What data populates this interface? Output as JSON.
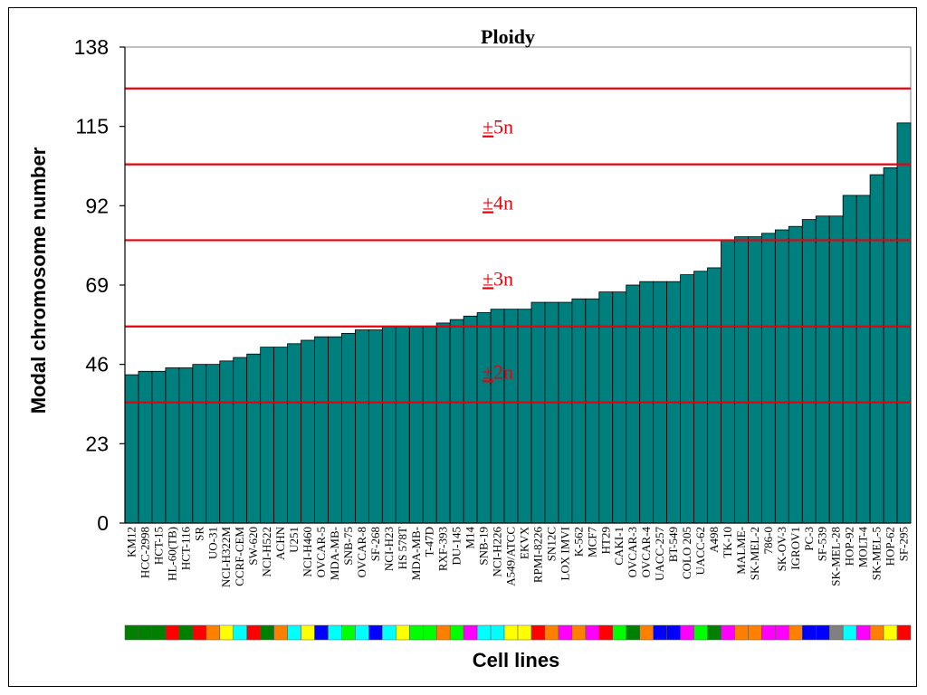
{
  "chart_data": {
    "type": "bar",
    "title": "Ploidy",
    "xlabel": "Cell lines",
    "ylabel": "Modal chromosome number",
    "ylim": [
      0,
      138
    ],
    "yticks": [
      0,
      23,
      46,
      69,
      92,
      115,
      138
    ],
    "bar_color": "#007f7f",
    "line_color": "#e8000b",
    "categories": [
      "KM12",
      "HCC-2998",
      "HCT-15",
      "HL-60(TB)",
      "HCT-116",
      "SR",
      "UO-31",
      "NCI-H322M",
      "CCRF-CEM",
      "SW-620",
      "NCI-H522",
      "ACHN",
      "U251",
      "NCI-H460",
      "OVCAR-5",
      "MDA-MB-",
      "SNB-75",
      "OVCAR-8",
      "SF-268",
      "NCI-H23",
      "HS 578T",
      "MDA-MB-",
      "T-47D",
      "RXF-393",
      "DU-145",
      "M14",
      "SNB-19",
      "NCI-H226",
      "A549/ATCC",
      "EKVX",
      "RPMI-8226",
      "SN12C",
      "LOX IMVI",
      "K-562",
      "MCF7",
      "HT29",
      "CAKI-1",
      "OVCAR-3",
      "OVCAR-4",
      "UACC-257",
      "BT-549",
      "COLO 205",
      "UACC-62",
      "A498",
      "TK-10",
      "MALME-",
      "SK-MEL-2",
      "786-0",
      "SK-OV-3",
      "IGROV1",
      "PC-3",
      "SF-539",
      "SK-MEL-28",
      "HOP-92",
      "MOLT-4",
      "SK-MEL-5",
      "HOP-62",
      "SF-295"
    ],
    "values": [
      43,
      44,
      44,
      45,
      45,
      46,
      46,
      47,
      48,
      49,
      51,
      51,
      52,
      53,
      54,
      54,
      55,
      56,
      56,
      57,
      57,
      57,
      57,
      58,
      59,
      60,
      61,
      62,
      62,
      62,
      64,
      64,
      64,
      65,
      65,
      67,
      67,
      69,
      70,
      70,
      70,
      72,
      73,
      74,
      82,
      83,
      83,
      84,
      85,
      86,
      88,
      89,
      89,
      95,
      95,
      101,
      103,
      116
    ],
    "reference_lines": [
      35,
      57,
      82,
      104,
      126
    ],
    "band_labels": [
      {
        "sign": "±",
        "text": "2n",
        "y": 44
      },
      {
        "sign": "±",
        "text": "3n",
        "y": 71
      },
      {
        "sign": "±",
        "text": "4n",
        "y": 93
      },
      {
        "sign": "±",
        "text": "5n",
        "y": 115
      }
    ],
    "color_strip": [
      "#007f00",
      "#007f00",
      "#007f00",
      "#ff0000",
      "#007f00",
      "#ff0000",
      "#ff7f00",
      "#ffff00",
      "#00ffff",
      "#ff0000",
      "#007f00",
      "#ff7f00",
      "#00ffff",
      "#ffff00",
      "#0000ff",
      "#00ffff",
      "#00ff00",
      "#00ffff",
      "#0000ff",
      "#00ffff",
      "#ffff00",
      "#00ff00",
      "#00ff00",
      "#ff7f00",
      "#00ff00",
      "#ff00ff",
      "#00ffff",
      "#00ffff",
      "#ffff00",
      "#ffff00",
      "#ff0000",
      "#ff7f00",
      "#ff00ff",
      "#ff7f00",
      "#ff00ff",
      "#ff0000",
      "#00ff00",
      "#007f00",
      "#ff7f00",
      "#0000ff",
      "#0000ff",
      "#ff00ff",
      "#00ff00",
      "#007f00",
      "#ff00ff",
      "#ff7f00",
      "#ff7f00",
      "#ff00ff",
      "#ff00ff",
      "#ff7f00",
      "#0000ff",
      "#0000ff",
      "#808080",
      "#00ffff",
      "#ff00ff",
      "#ff7f00",
      "#ffff00",
      "#ff0000"
    ]
  }
}
